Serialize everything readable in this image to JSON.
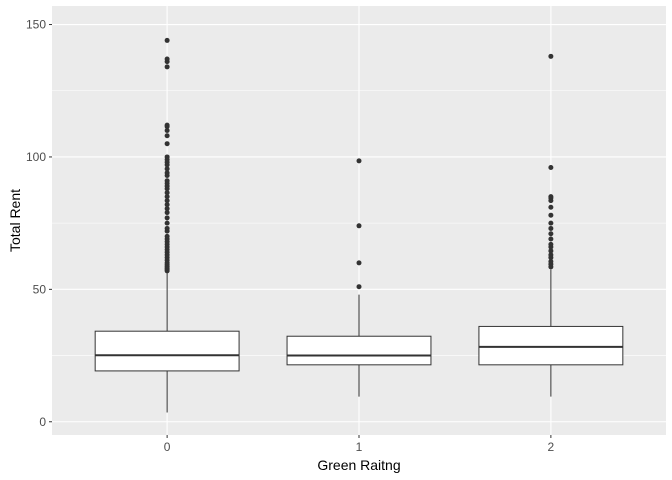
{
  "chart_data": {
    "type": "boxplot",
    "xlabel": "Green Raitng",
    "ylabel": "Total Rent",
    "categories": [
      "0",
      "1",
      "2"
    ],
    "ylim": [
      -5,
      157
    ],
    "yticks": [
      0,
      50,
      100,
      150
    ],
    "ytick_labels": [
      "0",
      "50",
      "100",
      "150"
    ],
    "grid": true,
    "boxes": [
      {
        "category": "0",
        "whisker_low": 3.5,
        "q1": 19.2,
        "median": 25.1,
        "q3": 34.2,
        "whisker_high": 56.5,
        "outliers": [
          57,
          57.5,
          58,
          58.6,
          59.3,
          60,
          61,
          62,
          63,
          64,
          65,
          66,
          67,
          68,
          69,
          70,
          72,
          73,
          75,
          77,
          79,
          80.5,
          82,
          83.5,
          85,
          86.5,
          88,
          89,
          90,
          91,
          93,
          94,
          95.5,
          97,
          98,
          99,
          100,
          105,
          108,
          110,
          111.5,
          112,
          134,
          136,
          137,
          144
        ]
      },
      {
        "category": "1",
        "whisker_low": 9.5,
        "q1": 21.5,
        "median": 25,
        "q3": 32.3,
        "whisker_high": 48,
        "outliers": [
          51,
          60,
          74,
          98.5
        ]
      },
      {
        "category": "2",
        "whisker_low": 9.5,
        "q1": 21.5,
        "median": 28.3,
        "q3": 36,
        "whisker_high": 57.5,
        "outliers": [
          58.5,
          59.5,
          60.5,
          62,
          63,
          64.5,
          66,
          67,
          69,
          71,
          73,
          75,
          78,
          81,
          83.5,
          84.5,
          85,
          96,
          138
        ]
      }
    ]
  },
  "style": {
    "panel_background": "#ebebeb",
    "grid_color": "#ffffff",
    "box_fill": "#ffffff",
    "box_stroke": "#333333",
    "outlier_color": "#333333",
    "axis_text_color": "#4d4d4d",
    "axis_title_color": "#000000"
  }
}
